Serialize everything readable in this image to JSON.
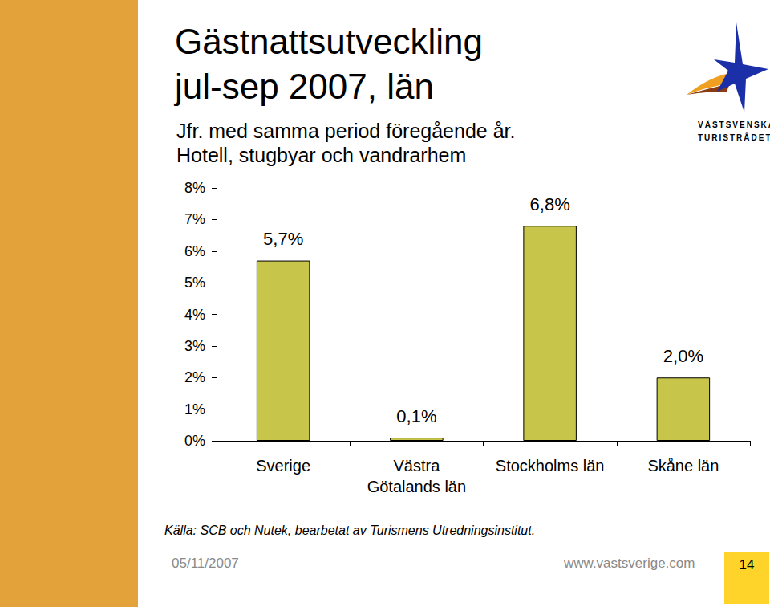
{
  "chart_data": {
    "type": "bar",
    "title": "Gästnattsutveckling\njul-sep 2007, län",
    "subtitle": "Jfr. med samma period föregående år.\nHotell, stugbyar och vandrarhem",
    "categories": [
      "Sverige",
      "Västra\nGötalands län",
      "Stockholms län",
      "Skåne län"
    ],
    "values": [
      5.7,
      0.1,
      6.8,
      2.0
    ],
    "value_labels": [
      "5,7%",
      "0,1%",
      "6,8%",
      "2,0%"
    ],
    "color": "#c8c64a",
    "ylim": [
      0,
      8
    ],
    "yticks": [
      {
        "value": 0,
        "label": "0%"
      },
      {
        "value": 1,
        "label": "1%"
      },
      {
        "value": 2,
        "label": "2%"
      },
      {
        "value": 3,
        "label": "3%"
      },
      {
        "value": 4,
        "label": "4%"
      },
      {
        "value": 5,
        "label": "5%"
      },
      {
        "value": 6,
        "label": "6%"
      },
      {
        "value": 7,
        "label": "7%"
      },
      {
        "value": 8,
        "label": "8%"
      }
    ],
    "grid": false,
    "data_labels": true
  },
  "source": "Källa: SCB och Nutek, bearbetat av Turismens Utredningsinstitut.",
  "footer": {
    "date": "05/11/2007",
    "url": "www.vastsverige.com",
    "page": "14"
  },
  "logo": {
    "line1": "VÄSTSVENSKA",
    "line2": "TURISTRÅDET"
  }
}
